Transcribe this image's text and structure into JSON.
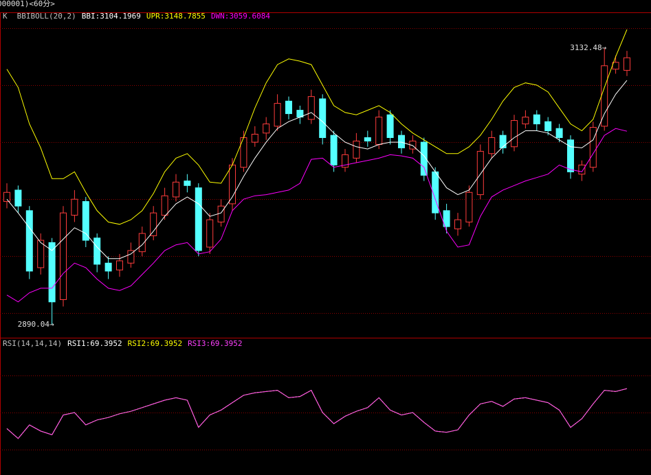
{
  "chart_data": [
    {
      "type": "candlestick",
      "title": "000001)<60分>",
      "label": "K",
      "indicator": "BBIBOLL(20,2)",
      "up_color": "#ff3c3c",
      "down_color": "#54ffff",
      "open": [
        2998,
        3008,
        2990,
        2940,
        2962,
        2912,
        2986,
        2998,
        2966,
        2944,
        2938,
        2944,
        2954,
        2968,
        2986,
        3002,
        3016,
        3010,
        2958,
        2980,
        2996,
        3028,
        3050,
        3058,
        3064,
        3086,
        3078,
        3070,
        3088,
        3056,
        3028,
        3036,
        3054,
        3048,
        3074,
        3056,
        3044,
        3050,
        3024,
        2990,
        2974,
        2980,
        3004,
        3040,
        3056,
        3046,
        3066,
        3074,
        3068,
        3062,
        3052,
        3022,
        3028,
        3064,
        3114,
        3113
      ],
      "high": [
        3014,
        3012,
        2994,
        2970,
        2966,
        2994,
        3008,
        3002,
        2970,
        2950,
        2952,
        2962,
        2976,
        2994,
        3010,
        3022,
        3022,
        3014,
        2988,
        3000,
        3036,
        3060,
        3064,
        3072,
        3092,
        3090,
        3082,
        3096,
        3092,
        3060,
        3044,
        3058,
        3060,
        3078,
        3078,
        3060,
        3056,
        3054,
        3028,
        2996,
        2988,
        3012,
        3048,
        3060,
        3060,
        3074,
        3078,
        3078,
        3072,
        3066,
        3056,
        3034,
        3068,
        3132.48,
        3126,
        3130
      ],
      "low": [
        2992,
        2988,
        2930,
        2934,
        2890.04,
        2906,
        2980,
        2958,
        2936,
        2930,
        2932,
        2940,
        2950,
        2964,
        2982,
        2998,
        3006,
        2950,
        2952,
        2976,
        2990,
        3024,
        3046,
        3052,
        3060,
        3070,
        3066,
        3066,
        3048,
        3024,
        3024,
        3032,
        3046,
        3044,
        3048,
        3040,
        3040,
        3016,
        2982,
        2970,
        2968,
        2976,
        3000,
        3036,
        3040,
        3042,
        3062,
        3060,
        3056,
        3050,
        3018,
        3016,
        3024,
        3060,
        3110,
        3108
      ],
      "close": [
        3006,
        2994,
        2937,
        2964,
        2910,
        2988,
        3000,
        2964,
        2943,
        2937,
        2946,
        2955,
        2970,
        2988,
        3003,
        3015,
        3012,
        2955,
        2982,
        2994,
        3030,
        3054,
        3057,
        3066,
        3084,
        3075,
        3072,
        3090,
        3054,
        3030,
        3039,
        3051,
        3051,
        3072,
        3054,
        3045,
        3051,
        3021,
        2988,
        2976,
        2982,
        3006,
        3042,
        3054,
        3045,
        3069,
        3072,
        3066,
        3060,
        3054,
        3024,
        3030,
        3063,
        3117,
        3120,
        3124
      ],
      "series": [
        {
          "name": "BBI:",
          "color": "#ffffff",
          "values": [
            3000,
            2988,
            2975,
            2962,
            2955,
            2965,
            2975,
            2970,
            2958,
            2948,
            2948,
            2952,
            2960,
            2972,
            2985,
            2996,
            3002,
            2996,
            2985,
            2988,
            3002,
            3020,
            3036,
            3050,
            3062,
            3068,
            3072,
            3076,
            3068,
            3058,
            3050,
            3046,
            3044,
            3048,
            3050,
            3050,
            3047,
            3038,
            3024,
            3010,
            3004,
            3008,
            3022,
            3036,
            3046,
            3054,
            3060,
            3060,
            3058,
            3052,
            3046,
            3045,
            3052,
            3075,
            3092,
            3104.1969
          ]
        },
        {
          "name": "UPR:",
          "color": "#ffff00",
          "values": [
            3114,
            3098,
            3066,
            3045,
            3018,
            3018,
            3024,
            3006,
            2990,
            2980,
            2978,
            2982,
            2990,
            3005,
            3024,
            3036,
            3040,
            3030,
            3015,
            3014,
            3030,
            3054,
            3080,
            3102,
            3118,
            3123,
            3121,
            3118,
            3100,
            3082,
            3076,
            3074,
            3078,
            3082,
            3076,
            3066,
            3058,
            3052,
            3046,
            3040,
            3040,
            3046,
            3056,
            3070,
            3086,
            3098,
            3102,
            3100,
            3094,
            3080,
            3066,
            3060,
            3070,
            3098,
            3125,
            3148.7855
          ]
        },
        {
          "name": "DWN:",
          "color": "#ff00ff",
          "values": [
            2916,
            2910,
            2918,
            2922,
            2922,
            2935,
            2944,
            2940,
            2930,
            2922,
            2920,
            2924,
            2934,
            2944,
            2955,
            2960,
            2962,
            2952,
            2954,
            2965,
            2990,
            3000,
            3003,
            3004,
            3006,
            3008,
            3014,
            3035,
            3036,
            3028,
            3030,
            3032,
            3034,
            3036,
            3039,
            3038,
            3036,
            3028,
            3000,
            2972,
            2958,
            2960,
            2985,
            3002,
            3008,
            3012,
            3016,
            3019,
            3022,
            3030,
            3026,
            3024,
            3040,
            3056,
            3062,
            3059.6084
          ]
        }
      ],
      "ylim": [
        2879.8,
        3163.8
      ],
      "ygrid": [
        3150,
        3100,
        3050,
        3000,
        2950,
        2900
      ],
      "annotations": [
        {
          "value": 3132.48,
          "label": "3132.48→"
        },
        {
          "value": 2890.04,
          "label": "2890.04→"
        }
      ]
    },
    {
      "type": "line",
      "indicator": "RSI(14,14,14)",
      "series": [
        {
          "name": "RSI1:",
          "color": "#ffffff",
          "values": [
            37,
            29,
            40,
            35,
            32,
            48,
            50,
            40,
            44,
            46,
            49,
            51,
            54,
            57,
            60,
            62,
            60,
            38,
            48,
            52,
            58,
            64,
            66,
            67,
            68,
            62,
            63,
            68,
            50,
            41,
            47,
            51,
            54,
            62,
            52,
            48,
            50,
            42,
            35,
            34,
            36,
            48,
            57,
            59,
            55,
            61,
            62,
            60,
            58,
            52,
            38,
            45,
            57,
            68,
            67,
            69.3952
          ]
        },
        {
          "name": "RSI2:",
          "color": "#ffff00",
          "values": [
            37,
            29,
            40,
            35,
            32,
            48,
            50,
            40,
            44,
            46,
            49,
            51,
            54,
            57,
            60,
            62,
            60,
            38,
            48,
            52,
            58,
            64,
            66,
            67,
            68,
            62,
            63,
            68,
            50,
            41,
            47,
            51,
            54,
            62,
            52,
            48,
            50,
            42,
            35,
            34,
            36,
            48,
            57,
            59,
            55,
            61,
            62,
            60,
            58,
            52,
            38,
            45,
            57,
            68,
            67,
            69.3952
          ]
        },
        {
          "name": "RSI3:",
          "color": "#ff40ff",
          "values": [
            37,
            29,
            40,
            35,
            32,
            48,
            50,
            40,
            44,
            46,
            49,
            51,
            54,
            57,
            60,
            62,
            60,
            38,
            48,
            52,
            58,
            64,
            66,
            67,
            68,
            62,
            63,
            68,
            50,
            41,
            47,
            51,
            54,
            62,
            52,
            48,
            50,
            42,
            35,
            34,
            36,
            48,
            57,
            59,
            55,
            61,
            62,
            60,
            58,
            52,
            38,
            45,
            57,
            68,
            67,
            69.3952
          ]
        }
      ],
      "ylim": [
        0,
        110
      ],
      "ygrid": [
        80,
        50,
        20
      ]
    }
  ]
}
